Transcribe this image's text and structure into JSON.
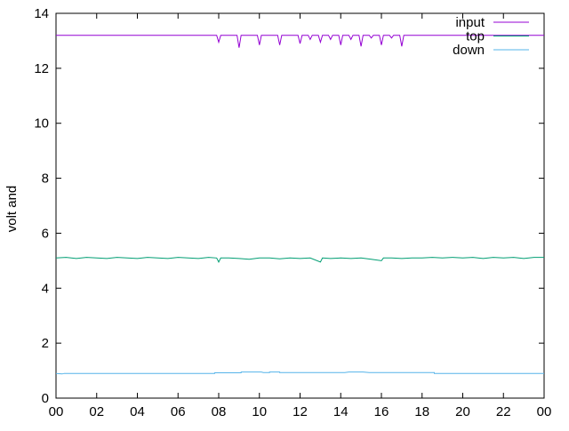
{
  "chart_data": {
    "type": "line",
    "title": "",
    "xlabel": "",
    "ylabel": "volt and",
    "xlim": [
      0,
      24
    ],
    "ylim": [
      0,
      14
    ],
    "grid": false,
    "legend_placement": "top-right",
    "x_tick_labels": [
      "00",
      "02",
      "04",
      "06",
      "08",
      "10",
      "12",
      "14",
      "16",
      "18",
      "20",
      "22",
      "00"
    ],
    "y_ticks": [
      0,
      2,
      4,
      6,
      8,
      10,
      12,
      14
    ],
    "series": [
      {
        "name": "input",
        "color": "#9400d3",
        "points": [
          [
            0,
            13.2
          ],
          [
            7.9,
            13.2
          ],
          [
            8,
            12.95
          ],
          [
            8.1,
            13.2
          ],
          [
            8.9,
            13.2
          ],
          [
            9,
            12.75
          ],
          [
            9.1,
            13.2
          ],
          [
            9.9,
            13.2
          ],
          [
            10,
            12.85
          ],
          [
            10.1,
            13.2
          ],
          [
            10.9,
            13.2
          ],
          [
            11,
            12.85
          ],
          [
            11.1,
            13.2
          ],
          [
            11.9,
            13.2
          ],
          [
            12,
            12.9
          ],
          [
            12.1,
            13.2
          ],
          [
            12.4,
            13.2
          ],
          [
            12.5,
            13.05
          ],
          [
            12.6,
            13.2
          ],
          [
            12.9,
            13.2
          ],
          [
            13,
            12.95
          ],
          [
            13.1,
            13.2
          ],
          [
            13.4,
            13.2
          ],
          [
            13.5,
            13.05
          ],
          [
            13.6,
            13.2
          ],
          [
            13.9,
            13.2
          ],
          [
            14,
            12.85
          ],
          [
            14.1,
            13.2
          ],
          [
            14.4,
            13.2
          ],
          [
            14.5,
            13.05
          ],
          [
            14.6,
            13.2
          ],
          [
            14.9,
            13.2
          ],
          [
            15,
            12.8
          ],
          [
            15.1,
            13.2
          ],
          [
            15.4,
            13.2
          ],
          [
            15.5,
            13.1
          ],
          [
            15.6,
            13.2
          ],
          [
            15.9,
            13.2
          ],
          [
            16,
            12.85
          ],
          [
            16.1,
            13.2
          ],
          [
            16.4,
            13.2
          ],
          [
            16.5,
            13.1
          ],
          [
            16.6,
            13.2
          ],
          [
            16.9,
            13.2
          ],
          [
            17,
            12.8
          ],
          [
            17.1,
            13.2
          ],
          [
            24,
            13.2
          ]
        ]
      },
      {
        "name": "top",
        "color": "#009e73",
        "points": [
          [
            0,
            5.1
          ],
          [
            0.5,
            5.12
          ],
          [
            1,
            5.08
          ],
          [
            1.5,
            5.12
          ],
          [
            2,
            5.1
          ],
          [
            2.5,
            5.08
          ],
          [
            3,
            5.12
          ],
          [
            3.5,
            5.1
          ],
          [
            4,
            5.08
          ],
          [
            4.5,
            5.12
          ],
          [
            5,
            5.1
          ],
          [
            5.5,
            5.08
          ],
          [
            6,
            5.12
          ],
          [
            6.5,
            5.1
          ],
          [
            7,
            5.08
          ],
          [
            7.5,
            5.12
          ],
          [
            7.9,
            5.1
          ],
          [
            8,
            4.95
          ],
          [
            8.1,
            5.1
          ],
          [
            8.5,
            5.1
          ],
          [
            9,
            5.08
          ],
          [
            9.5,
            5.05
          ],
          [
            10,
            5.1
          ],
          [
            10.5,
            5.1
          ],
          [
            11,
            5.07
          ],
          [
            11.5,
            5.1
          ],
          [
            12,
            5.08
          ],
          [
            12.5,
            5.1
          ],
          [
            13,
            4.95
          ],
          [
            13.1,
            5.1
          ],
          [
            13.5,
            5.08
          ],
          [
            14,
            5.1
          ],
          [
            14.5,
            5.08
          ],
          [
            15,
            5.1
          ],
          [
            15.5,
            5.05
          ],
          [
            16,
            5.0
          ],
          [
            16.1,
            5.1
          ],
          [
            16.5,
            5.1
          ],
          [
            17,
            5.08
          ],
          [
            17.5,
            5.1
          ],
          [
            18,
            5.1
          ],
          [
            18.5,
            5.12
          ],
          [
            19,
            5.1
          ],
          [
            19.5,
            5.12
          ],
          [
            20,
            5.1
          ],
          [
            20.5,
            5.12
          ],
          [
            21,
            5.08
          ],
          [
            21.5,
            5.12
          ],
          [
            22,
            5.1
          ],
          [
            22.5,
            5.12
          ],
          [
            23,
            5.08
          ],
          [
            23.5,
            5.12
          ],
          [
            24,
            5.12
          ]
        ]
      },
      {
        "name": "down",
        "color": "#56b4e9",
        "points": [
          [
            0,
            0.9
          ],
          [
            0.3,
            0.88
          ],
          [
            0.4,
            0.9
          ],
          [
            7.8,
            0.9
          ],
          [
            7.8,
            0.92
          ],
          [
            9.1,
            0.92
          ],
          [
            9.1,
            0.95
          ],
          [
            10.1,
            0.95
          ],
          [
            10.2,
            0.93
          ],
          [
            10.5,
            0.93
          ],
          [
            10.5,
            0.95
          ],
          [
            11,
            0.95
          ],
          [
            11,
            0.93
          ],
          [
            14.2,
            0.93
          ],
          [
            14.4,
            0.95
          ],
          [
            15.1,
            0.95
          ],
          [
            15.4,
            0.93
          ],
          [
            18.6,
            0.93
          ],
          [
            18.6,
            0.9
          ],
          [
            24,
            0.9
          ]
        ]
      }
    ]
  }
}
